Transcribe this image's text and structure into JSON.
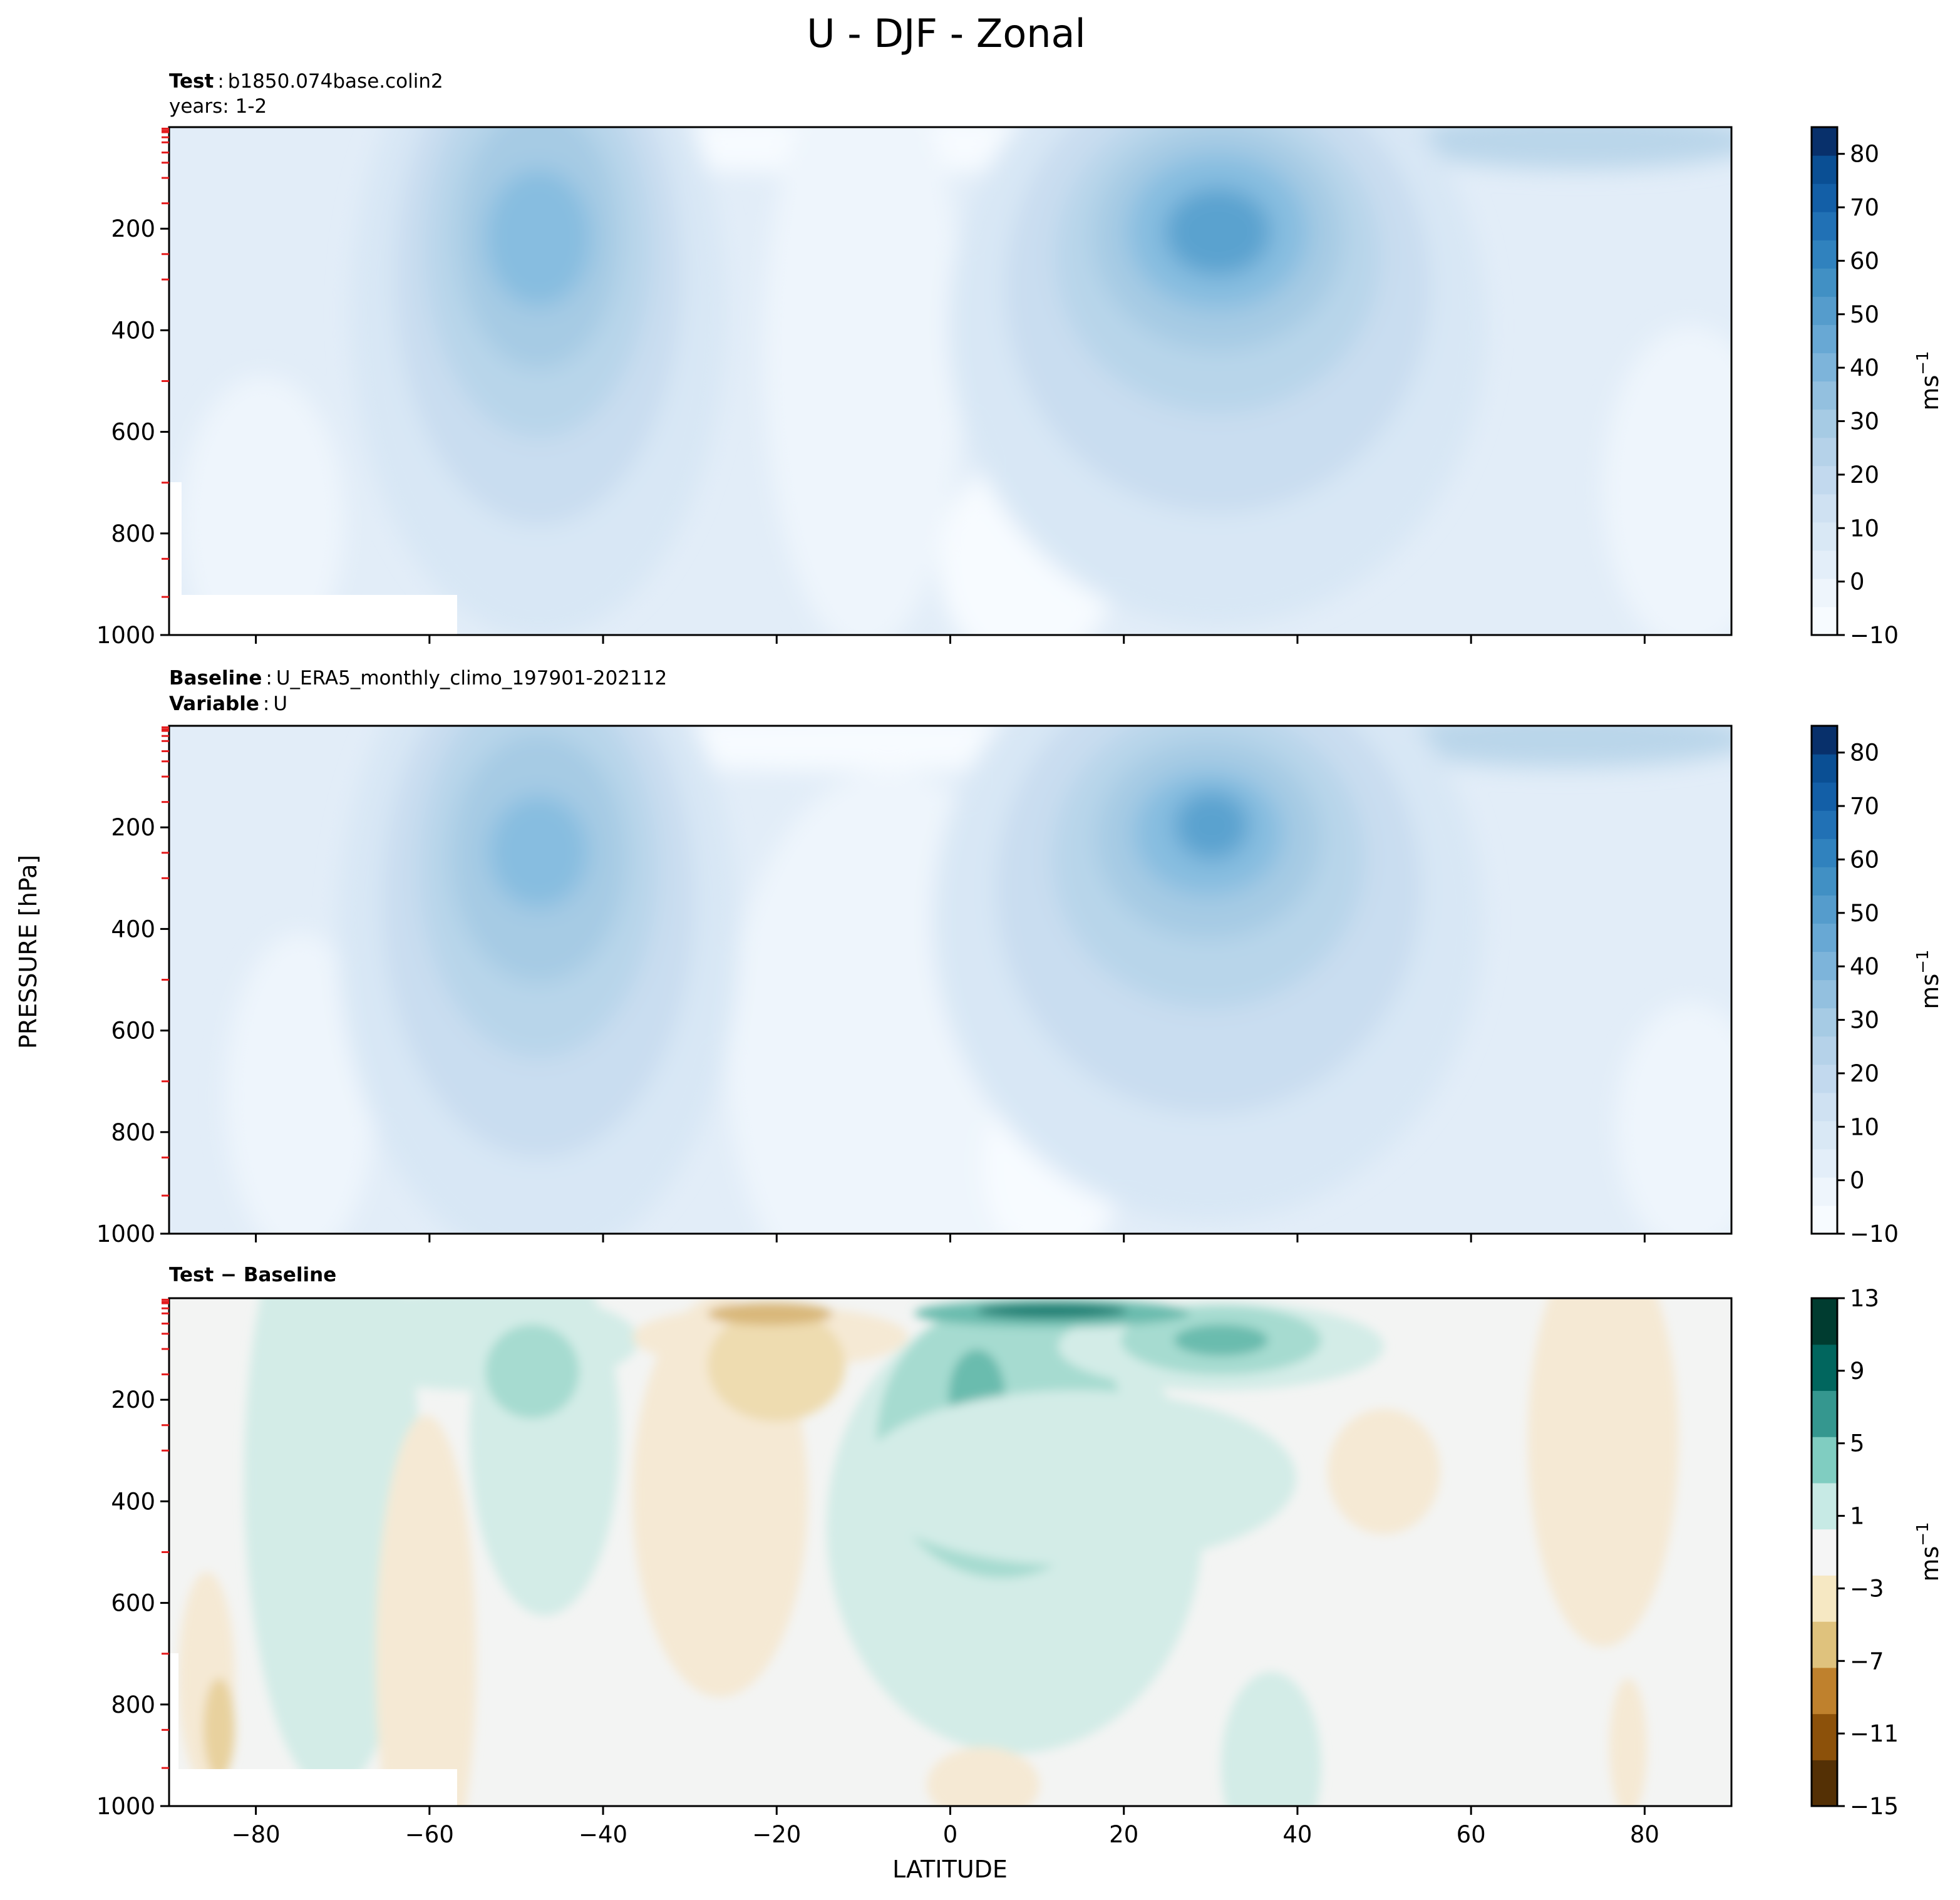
{
  "chart_data": {
    "type": "contourf",
    "title": "U - DJF - Zonal",
    "xlabel": "LATITUDE",
    "ylabel": "PRESSURE [hPa]",
    "xlim": [
      -90,
      90
    ],
    "ylim": [
      1000,
      0
    ],
    "xticks": [
      -80,
      -60,
      -40,
      -20,
      0,
      20,
      40,
      60,
      80
    ],
    "xtick_labels": [
      "−80",
      "−60",
      "−40",
      "−20",
      "0",
      "20",
      "40",
      "60",
      "80"
    ],
    "yticks": [
      200,
      400,
      600,
      800,
      1000
    ],
    "ytick_labels": [
      "200",
      "400",
      "600",
      "800",
      "1000"
    ],
    "red_minor_ticks_hPa": [
      3,
      7,
      10,
      20,
      30,
      50,
      70,
      100,
      150,
      250,
      300,
      500,
      700,
      850,
      925
    ],
    "panels": [
      {
        "id": "test",
        "header": [
          {
            "bold": "Test",
            "sep": ":",
            "text": "b1850.074base.colin2"
          },
          {
            "bold": "",
            "sep": "",
            "text": "years: 1-2"
          }
        ],
        "colorbar": {
          "label": "ms",
          "label_sup": "−1",
          "range": [
            -10,
            85
          ],
          "ticks": [
            80,
            70,
            60,
            50,
            40,
            30,
            20,
            10,
            0,
            -10
          ],
          "tick_labels": [
            "80",
            "70",
            "60",
            "50",
            "40",
            "30",
            "20",
            "10",
            "0",
            "−10"
          ]
        },
        "jets": [
          {
            "name": "SH jet",
            "lat": -47,
            "p_hPa": 220,
            "max": 42
          },
          {
            "name": "NH jet",
            "lat": 31,
            "p_hPa": 195,
            "max": 48
          }
        ]
      },
      {
        "id": "baseline",
        "header": [
          {
            "bold": "Baseline",
            "sep": ":",
            "text": "U_ERA5_monthly_climo_197901-202112"
          },
          {
            "bold": "Variable",
            "sep": ":",
            "text": "U"
          }
        ],
        "colorbar": {
          "label": "ms",
          "label_sup": "−1",
          "range": [
            -10,
            85
          ],
          "ticks": [
            80,
            70,
            60,
            50,
            40,
            30,
            20,
            10,
            0,
            -10
          ],
          "tick_labels": [
            "80",
            "70",
            "60",
            "50",
            "40",
            "30",
            "20",
            "10",
            "0",
            "−10"
          ]
        },
        "jets": [
          {
            "name": "SH jet",
            "lat": -48,
            "p_hPa": 235,
            "max": 40
          },
          {
            "name": "NH jet",
            "lat": 31,
            "p_hPa": 195,
            "max": 46
          }
        ]
      },
      {
        "id": "diff",
        "header": [
          {
            "bold": "Test − Baseline",
            "sep": "",
            "text": ""
          }
        ],
        "colorbar": {
          "label": "ms",
          "label_sup": "−1",
          "range": [
            -15,
            13
          ],
          "ticks": [
            13,
            9,
            5,
            1,
            -3,
            -7,
            -11,
            -15
          ],
          "tick_labels": [
            "13",
            "9",
            "5",
            "1",
            "−3",
            "−7",
            "−11",
            "−15"
          ]
        },
        "features": [
          {
            "name": "equatorial upper max",
            "lat": 10,
            "p_hPa": 20,
            "value": 12
          },
          {
            "name": "tropical positive",
            "lat": 5,
            "p_hPa": 240,
            "value": 7
          },
          {
            "name": "subtropical negative",
            "lat": -25,
            "p_hPa": 200,
            "value": -4
          }
        ]
      }
    ]
  }
}
